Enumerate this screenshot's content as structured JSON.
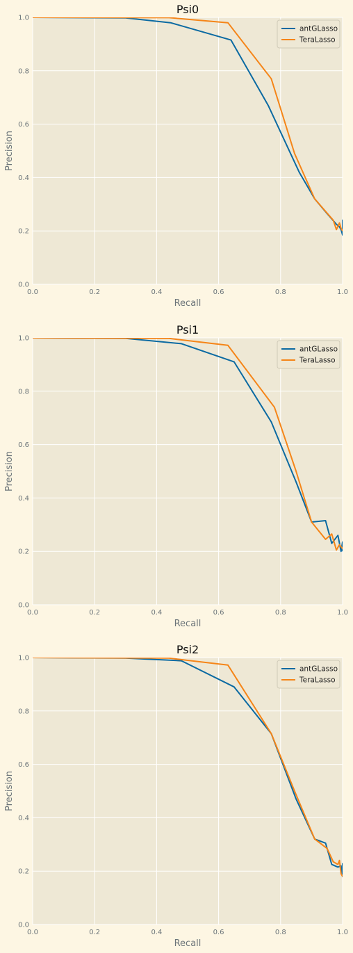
{
  "figure": {
    "background": "#fdf6e3",
    "axes_background": "#eee8d5",
    "grid_color": "#ffffff"
  },
  "chart_data": [
    {
      "type": "line",
      "title": "Psi0",
      "xlabel": "Recall",
      "ylabel": "Precision",
      "xlim": [
        0,
        1
      ],
      "ylim": [
        0,
        1
      ],
      "xticks": [
        "0.0",
        "0.2",
        "0.4",
        "0.6",
        "0.8",
        "1.0"
      ],
      "yticks": [
        "0.0",
        "0.2",
        "0.4",
        "0.6",
        "0.8",
        "1.0"
      ],
      "grid": true,
      "legend": "top-right",
      "series": [
        {
          "name": "antGLasso",
          "color": "#0b6aa2",
          "x": [
            0,
            0.3,
            0.445,
            0.64,
            0.76,
            0.86,
            0.91,
            0.95,
            0.98,
            0.99,
            0.995,
            1.0,
            1.0,
            1.0
          ],
          "y": [
            1.0,
            0.998,
            0.98,
            0.915,
            0.67,
            0.42,
            0.32,
            0.265,
            0.225,
            0.215,
            0.205,
            0.185,
            0.24,
            0.2
          ]
        },
        {
          "name": "TeraLasso",
          "color": "#f58518",
          "x": [
            0,
            0.44,
            0.63,
            0.77,
            0.845,
            0.91,
            0.97,
            0.98,
            0.99,
            0.995,
            1.0
          ],
          "y": [
            1.0,
            0.999,
            0.98,
            0.77,
            0.49,
            0.32,
            0.24,
            0.205,
            0.23,
            0.21,
            0.2
          ]
        }
      ]
    },
    {
      "type": "line",
      "title": "Psi1",
      "xlabel": "Recall",
      "ylabel": "Precision",
      "xlim": [
        0,
        1
      ],
      "ylim": [
        0,
        1
      ],
      "xticks": [
        "0.0",
        "0.2",
        "0.4",
        "0.6",
        "0.8",
        "1.0"
      ],
      "yticks": [
        "0.0",
        "0.2",
        "0.4",
        "0.6",
        "0.8",
        "1.0"
      ],
      "grid": true,
      "legend": "top-right",
      "series": [
        {
          "name": "antGLasso",
          "color": "#0b6aa2",
          "x": [
            0,
            0.3,
            0.48,
            0.65,
            0.77,
            0.85,
            0.9,
            0.945,
            0.965,
            0.985,
            0.995,
            1.0,
            1.0
          ],
          "y": [
            1.0,
            0.998,
            0.978,
            0.91,
            0.685,
            0.46,
            0.31,
            0.315,
            0.23,
            0.26,
            0.2,
            0.235,
            0.2
          ]
        },
        {
          "name": "TeraLasso",
          "color": "#f58518",
          "x": [
            0,
            0.44,
            0.63,
            0.78,
            0.85,
            0.9,
            0.945,
            0.965,
            0.98,
            0.99,
            1.0
          ],
          "y": [
            1.0,
            0.998,
            0.972,
            0.74,
            0.5,
            0.31,
            0.245,
            0.265,
            0.205,
            0.225,
            0.21
          ]
        }
      ]
    },
    {
      "type": "line",
      "title": "Psi2",
      "xlabel": "Recall",
      "ylabel": "Precision",
      "xlim": [
        0,
        1
      ],
      "ylim": [
        0,
        1
      ],
      "xticks": [
        "0.0",
        "0.2",
        "0.4",
        "0.6",
        "0.8",
        "1.0"
      ],
      "yticks": [
        "0.0",
        "0.2",
        "0.4",
        "0.6",
        "0.8",
        "1.0"
      ],
      "grid": true,
      "legend": "top-right",
      "series": [
        {
          "name": "antGLasso",
          "color": "#0b6aa2",
          "x": [
            0,
            0.3,
            0.48,
            0.65,
            0.77,
            0.85,
            0.91,
            0.945,
            0.965,
            0.985,
            0.995,
            1.0,
            1.0
          ],
          "y": [
            1.0,
            0.998,
            0.988,
            0.89,
            0.715,
            0.47,
            0.32,
            0.305,
            0.225,
            0.215,
            0.22,
            0.18,
            0.23
          ]
        },
        {
          "name": "TeraLasso",
          "color": "#f58518",
          "x": [
            0,
            0.44,
            0.63,
            0.77,
            0.845,
            0.91,
            0.95,
            0.97,
            0.985,
            0.99,
            0.995,
            1.0
          ],
          "y": [
            1.0,
            0.998,
            0.972,
            0.715,
            0.5,
            0.32,
            0.285,
            0.235,
            0.225,
            0.24,
            0.19,
            0.18
          ]
        }
      ]
    }
  ]
}
